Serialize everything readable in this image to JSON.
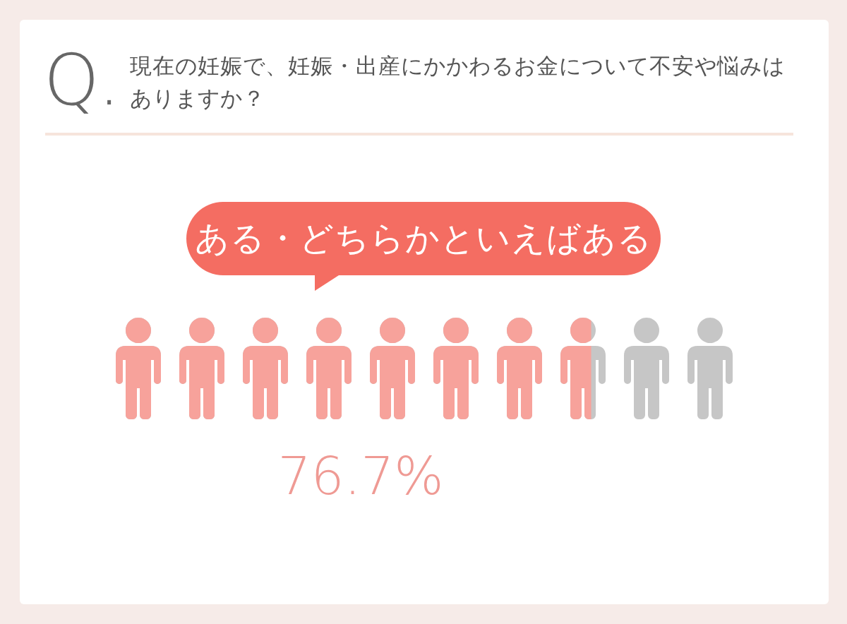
{
  "chart_data": {
    "type": "other",
    "title": "現在の妊娠で、妊娠・出産にかかわるお金について不安や悩みはありますか？",
    "annotations": [
      "Q."
    ],
    "categories": [
      "ある・どちらかといえばある"
    ],
    "values": [
      76.7
    ],
    "value_labels": [
      "76.7%"
    ],
    "color": "#f7a29b"
  }
}
